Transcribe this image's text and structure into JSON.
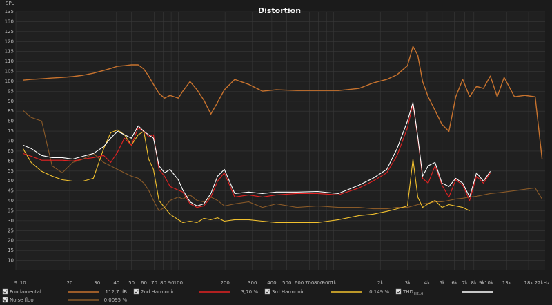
{
  "chart_data": {
    "type": "line",
    "title": "Distortion",
    "y_label": "SPL",
    "log_x": true,
    "grid": true,
    "xlim": [
      9,
      23000
    ],
    "ylim": [
      5,
      135
    ],
    "xticks": [
      9,
      10,
      20,
      30,
      40,
      50,
      60,
      70,
      80,
      90,
      100,
      200,
      300,
      400,
      500,
      600,
      700,
      800,
      900,
      {
        "value": 1000,
        "label": "1k"
      },
      {
        "value": 2000,
        "label": "2k"
      },
      {
        "value": 3000,
        "label": "3k"
      },
      {
        "value": 4000,
        "label": "4k"
      },
      {
        "value": 5000,
        "label": "5k"
      },
      {
        "value": 6000,
        "label": "6k"
      },
      {
        "value": 7000,
        "label": "7k"
      },
      {
        "value": 8000,
        "label": "8k"
      },
      {
        "value": 9000,
        "label": "9k"
      },
      {
        "value": 10000,
        "label": "10k"
      },
      {
        "value": 13000,
        "label": "13k"
      },
      {
        "value": 18000,
        "label": "18k"
      },
      {
        "value": 22000,
        "label": "22kHz"
      }
    ],
    "yticks": [
      10,
      15,
      20,
      25,
      30,
      35,
      40,
      45,
      50,
      55,
      60,
      65,
      70,
      75,
      80,
      85,
      90,
      95,
      100,
      105,
      110,
      115,
      120,
      125,
      130,
      135
    ],
    "x": [
      10,
      11.3,
      13.2,
      15.4,
      17.9,
      20.9,
      24.4,
      28.4,
      33.1,
      36.7,
      40.6,
      45,
      49.9,
      55.2,
      60,
      64.4,
      69.2,
      75.1,
      81.5,
      88.5,
      100,
      107,
      119,
      132,
      146,
      162,
      179,
      198,
      231,
      284,
      348,
      428,
      581,
      790,
      1074,
      1460,
      1792,
      2199,
      2564,
      2989,
      3244,
      3484,
      3743,
      4063,
      4501,
      4986,
      5524,
      6118,
      6778,
      7508,
      8318,
      9214,
      10206,
      11306,
      12524,
      14598,
      17019,
      19842,
      21987
    ],
    "series": [
      {
        "name": "Noise floor",
        "readout": "0,0095 %",
        "color": "#8a5a28",
        "values": [
          85.4,
          81.9,
          80.1,
          57.6,
          54.1,
          59.3,
          61.0,
          63.8,
          59.3,
          57.6,
          55.8,
          54.1,
          52.4,
          51.3,
          48.9,
          45.4,
          40.2,
          35.0,
          36.7,
          40.2,
          41.9,
          40.9,
          43.0,
          40.2,
          39.5,
          41.9,
          40.2,
          37.4,
          38.5,
          39.5,
          36.7,
          38.5,
          36.7,
          37.4,
          36.7,
          36.7,
          36.0,
          36.0,
          36.7,
          36.7,
          37.4,
          38.1,
          38.5,
          38.8,
          39.5,
          39.5,
          40.2,
          40.9,
          41.3,
          41.9,
          42.3,
          43.0,
          43.7,
          44.0,
          44.4,
          45.1,
          45.8,
          46.5,
          40.9
        ]
      },
      {
        "name": "Fundamental",
        "readout": "112,7 dB",
        "color": "#c8732e",
        "values": [
          100.6,
          101.0,
          101.3,
          101.7,
          102.0,
          102.4,
          103.1,
          104.1,
          105.5,
          106.5,
          107.6,
          107.9,
          108.3,
          108.3,
          106.2,
          102.7,
          98.5,
          94.0,
          91.6,
          93.0,
          91.6,
          95.1,
          99.9,
          95.8,
          90.6,
          83.6,
          89.5,
          95.8,
          101.0,
          98.5,
          95.1,
          95.8,
          95.4,
          95.4,
          95.4,
          96.5,
          99.2,
          101.0,
          103.4,
          107.9,
          117.6,
          113.1,
          99.9,
          92.3,
          85.4,
          78.4,
          74.9,
          92.3,
          101.0,
          92.3,
          97.5,
          96.5,
          102.7,
          92.3,
          102.0,
          92.3,
          93.0,
          92.3,
          61.0
        ]
      },
      {
        "name": "3rd Harmonic",
        "readout": "0,149 %",
        "color": "#f2c12e",
        "values": [
          66.3,
          59.3,
          54.8,
          52.4,
          50.6,
          49.9,
          49.9,
          51.3,
          66.3,
          74.2,
          75.6,
          73.2,
          68.0,
          73.2,
          74.9,
          61.0,
          55.8,
          40.2,
          36.7,
          33.3,
          30.5,
          29.1,
          29.8,
          29.1,
          31.2,
          30.5,
          31.5,
          29.8,
          30.5,
          30.5,
          29.8,
          29.1,
          29.1,
          29.1,
          30.5,
          32.6,
          33.3,
          34.7,
          36.0,
          37.4,
          61.0,
          41.9,
          36.7,
          38.5,
          40.2,
          36.7,
          38.1,
          37.4,
          36.7,
          35.0,
          null,
          null,
          null,
          null,
          null,
          null,
          null,
          null,
          null
        ]
      },
      {
        "name": "2nd Harmonic",
        "readout": "3,70 %",
        "color": "#e52222",
        "values": [
          63.8,
          62.4,
          60.4,
          60.4,
          60.4,
          60.0,
          61.0,
          61.7,
          62.8,
          59.3,
          64.5,
          71.5,
          68.0,
          76.7,
          74.9,
          72.2,
          73.2,
          55.8,
          52.4,
          47.2,
          45.4,
          44.4,
          38.5,
          36.7,
          37.4,
          41.9,
          49.9,
          54.1,
          41.9,
          43.0,
          41.9,
          43.0,
          43.7,
          43.7,
          43.0,
          46.5,
          49.9,
          54.1,
          62.8,
          76.7,
          88.8,
          71.5,
          51.3,
          48.9,
          57.6,
          47.9,
          41.9,
          50.6,
          47.9,
          40.2,
          52.4,
          48.9,
          54.1,
          null,
          null,
          null,
          null,
          null,
          null
        ]
      },
      {
        "name": "THD",
        "name_sub": "H2..6",
        "readout": "",
        "color": "#ffffff",
        "values": [
          68.0,
          66.3,
          62.8,
          61.7,
          61.7,
          61.0,
          62.4,
          63.8,
          67.3,
          71.5,
          74.9,
          73.2,
          71.5,
          77.7,
          74.9,
          73.2,
          71.5,
          57.6,
          54.1,
          55.8,
          50.6,
          45.4,
          39.5,
          37.4,
          38.5,
          43.7,
          52.4,
          55.8,
          43.7,
          44.4,
          43.7,
          44.4,
          44.4,
          44.7,
          43.7,
          47.9,
          51.3,
          55.8,
          66.3,
          80.1,
          89.5,
          72.2,
          52.4,
          57.6,
          59.3,
          48.9,
          47.2,
          51.3,
          48.9,
          41.9,
          54.1,
          49.9,
          54.8,
          null,
          null,
          null,
          null,
          null,
          null
        ]
      }
    ]
  }
}
